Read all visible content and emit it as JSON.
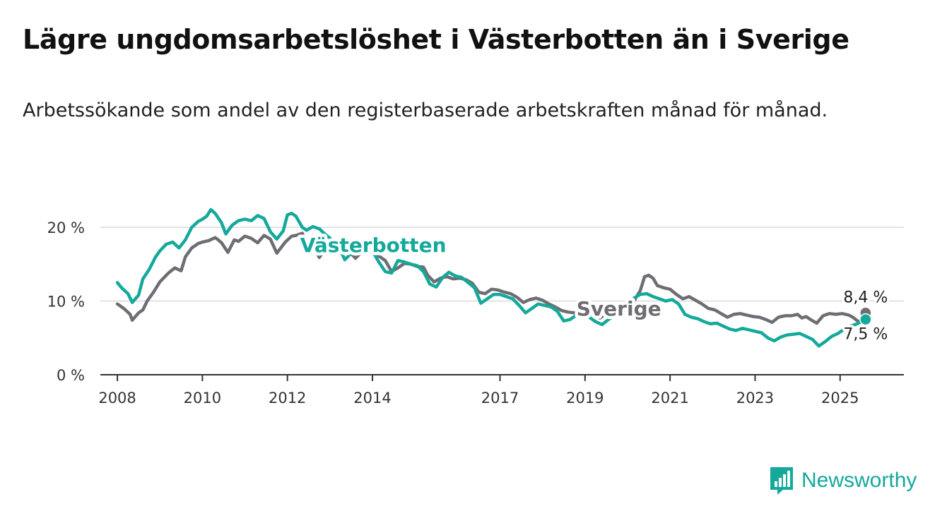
{
  "title": "Lägre ungdomsarbetslöshet i Västerbotten än i Sverige",
  "subtitle": "Arbetssökande som andel av den registerbaserade arbetskraften månad för månad.",
  "brand": {
    "name": "Newsworthy",
    "icon": "bar-chart-logo-icon"
  },
  "colors": {
    "vasterbotten": "#14a99b",
    "sverige": "#6e6d73",
    "grid": "#d9d9d9",
    "axis": "#333333"
  },
  "chart_data": {
    "type": "line",
    "x_unit": "year",
    "xlim": [
      2007.6,
      2026.5
    ],
    "ylim": [
      0,
      22.5
    ],
    "y_ticks": [
      {
        "value": 0,
        "label": "0 %"
      },
      {
        "value": 10,
        "label": "10 %"
      },
      {
        "value": 20,
        "label": "20 %"
      }
    ],
    "x_ticks": [
      {
        "value": 2008,
        "label": "2008"
      },
      {
        "value": 2010,
        "label": "2010"
      },
      {
        "value": 2012,
        "label": "2012"
      },
      {
        "value": 2014,
        "label": "2014"
      },
      {
        "value": 2017,
        "label": "2017"
      },
      {
        "value": 2019,
        "label": "2019"
      },
      {
        "value": 2021,
        "label": "2021"
      },
      {
        "value": 2023,
        "label": "2023"
      },
      {
        "value": 2025,
        "label": "2025"
      }
    ],
    "series": [
      {
        "name": "Sverige",
        "color": "#6e6d73",
        "end_label": "8,4 %",
        "x": [
          2008.0,
          2008.15,
          2008.3,
          2008.35,
          2008.5,
          2008.6,
          2008.7,
          2008.85,
          2009.0,
          2009.2,
          2009.35,
          2009.5,
          2009.6,
          2009.75,
          2009.9,
          2010.0,
          2010.15,
          2010.3,
          2010.35,
          2010.45,
          2010.6,
          2010.75,
          2010.85,
          2011.0,
          2011.15,
          2011.3,
          2011.45,
          2011.6,
          2011.75,
          2011.95,
          2012.1,
          2012.2,
          2012.35,
          2012.45,
          2012.6,
          2012.75,
          2012.9,
          2013.1,
          2013.3,
          2013.45,
          2013.6,
          2013.75,
          2013.9,
          2014.0,
          2014.15,
          2014.3,
          2014.45,
          2014.6,
          2014.75,
          2014.9,
          2015.05,
          2015.2,
          2015.3,
          2015.45,
          2015.6,
          2015.75,
          2015.9,
          2016.05,
          2016.2,
          2016.35,
          2016.5,
          2016.65,
          2016.8,
          2016.95,
          2017.1,
          2017.25,
          2017.4,
          2017.55,
          2017.7,
          2017.85,
          2018.0,
          2018.15,
          2018.3,
          2018.45,
          2018.6,
          2018.75,
          2018.9,
          2019.05,
          2019.2,
          2019.35,
          2019.5,
          2019.65,
          2019.8,
          2019.95,
          2020.1,
          2020.2,
          2020.3,
          2020.4,
          2020.5,
          2020.6,
          2020.7,
          2020.85,
          2021.0,
          2021.15,
          2021.3,
          2021.45,
          2021.6,
          2021.75,
          2021.9,
          2022.05,
          2022.2,
          2022.35,
          2022.5,
          2022.65,
          2022.8,
          2022.95,
          2023.1,
          2023.25,
          2023.4,
          2023.55,
          2023.7,
          2023.85,
          2024.0,
          2024.1,
          2024.2,
          2024.3,
          2024.45,
          2024.6,
          2024.75,
          2024.9,
          2025.05,
          2025.2,
          2025.3,
          2025.45,
          2025.6
        ],
        "values": [
          9.6,
          9.0,
          8.2,
          7.4,
          8.4,
          8.8,
          10.0,
          11.2,
          12.6,
          13.8,
          14.5,
          14.1,
          16.0,
          17.2,
          17.8,
          18.0,
          18.2,
          18.6,
          18.4,
          17.9,
          16.6,
          18.3,
          18.1,
          18.8,
          18.5,
          17.9,
          18.9,
          18.4,
          16.5,
          18.0,
          18.8,
          18.9,
          19.2,
          17.9,
          17.6,
          15.9,
          17.2,
          17.0,
          16.9,
          16.8,
          15.8,
          16.7,
          16.5,
          16.9,
          16.1,
          15.5,
          14.0,
          14.5,
          15.1,
          15.0,
          14.7,
          14.6,
          13.5,
          12.6,
          13.1,
          13.3,
          13.0,
          13.1,
          12.9,
          12.4,
          11.2,
          11.0,
          11.6,
          11.5,
          11.2,
          11.0,
          10.5,
          9.8,
          10.2,
          10.4,
          10.1,
          9.6,
          9.2,
          8.7,
          8.5,
          8.4,
          8.7,
          8.6,
          8.1,
          7.7,
          8.3,
          8.5,
          8.4,
          8.8,
          9.4,
          10.5,
          11.4,
          13.3,
          13.5,
          13.1,
          12.1,
          11.8,
          11.6,
          10.9,
          10.3,
          10.6,
          10.1,
          9.6,
          9.0,
          8.8,
          8.3,
          7.8,
          8.2,
          8.3,
          8.1,
          7.9,
          7.8,
          7.5,
          7.1,
          7.8,
          8.0,
          8.0,
          8.2,
          7.7,
          7.9,
          7.5,
          7.0,
          8.0,
          8.3,
          8.2,
          8.3,
          8.1,
          7.8,
          7.1,
          8.4
        ]
      },
      {
        "name": "Västerbotten",
        "color": "#14a99b",
        "end_label": "7,5 %",
        "x": [
          2008.0,
          2008.1,
          2008.25,
          2008.35,
          2008.5,
          2008.6,
          2008.75,
          2008.9,
          2009.0,
          2009.15,
          2009.3,
          2009.45,
          2009.6,
          2009.75,
          2009.9,
          2010.0,
          2010.1,
          2010.2,
          2010.3,
          2010.45,
          2010.55,
          2010.7,
          2010.85,
          2011.0,
          2011.15,
          2011.3,
          2011.45,
          2011.6,
          2011.75,
          2011.9,
          2012.0,
          2012.1,
          2012.2,
          2012.35,
          2012.45,
          2012.6,
          2012.75,
          2012.9,
          2013.05,
          2013.2,
          2013.35,
          2013.5,
          2013.65,
          2013.8,
          2013.9,
          2014.05,
          2014.15,
          2014.3,
          2014.45,
          2014.6,
          2014.75,
          2014.9,
          2015.05,
          2015.2,
          2015.35,
          2015.5,
          2015.65,
          2015.8,
          2015.95,
          2016.1,
          2016.25,
          2016.4,
          2016.55,
          2016.7,
          2016.85,
          2017.0,
          2017.15,
          2017.3,
          2017.45,
          2017.6,
          2017.75,
          2017.9,
          2018.05,
          2018.2,
          2018.35,
          2018.5,
          2018.65,
          2018.8,
          2018.95,
          2019.1,
          2019.25,
          2019.4,
          2019.55,
          2019.7,
          2019.85,
          2020.0,
          2020.15,
          2020.3,
          2020.45,
          2020.6,
          2020.75,
          2020.9,
          2021.05,
          2021.2,
          2021.35,
          2021.5,
          2021.65,
          2021.8,
          2021.95,
          2022.1,
          2022.25,
          2022.4,
          2022.55,
          2022.7,
          2022.85,
          2023.0,
          2023.15,
          2023.3,
          2023.45,
          2023.6,
          2023.75,
          2023.9,
          2024.05,
          2024.2,
          2024.35,
          2024.5,
          2024.65,
          2024.8,
          2024.95,
          2025.1,
          2025.25,
          2025.4,
          2025.6
        ],
        "values": [
          12.5,
          11.8,
          11.0,
          9.8,
          10.8,
          13.0,
          14.3,
          16.0,
          16.8,
          17.7,
          18.0,
          17.2,
          18.3,
          20.0,
          20.8,
          21.1,
          21.5,
          22.4,
          21.9,
          20.6,
          19.1,
          20.3,
          20.9,
          21.1,
          20.9,
          21.6,
          21.2,
          19.4,
          18.4,
          19.5,
          21.7,
          21.9,
          21.5,
          20.0,
          19.6,
          20.1,
          19.8,
          19.0,
          18.3,
          17.5,
          15.6,
          16.5,
          17.1,
          17.6,
          17.3,
          16.3,
          15.3,
          14.0,
          13.8,
          15.5,
          15.3,
          15.0,
          14.8,
          14.0,
          12.3,
          11.9,
          13.2,
          13.9,
          13.4,
          13.2,
          12.5,
          11.8,
          9.7,
          10.3,
          10.9,
          10.9,
          10.6,
          10.3,
          9.4,
          8.4,
          9.0,
          9.6,
          9.4,
          9.2,
          8.6,
          7.3,
          7.5,
          8.1,
          8.2,
          7.8,
          7.2,
          6.8,
          7.5,
          8.0,
          9.0,
          9.8,
          10.4,
          10.9,
          11.0,
          10.6,
          10.3,
          10.0,
          10.2,
          9.6,
          8.2,
          7.8,
          7.6,
          7.2,
          6.9,
          7.0,
          6.6,
          6.2,
          6.0,
          6.3,
          6.1,
          5.9,
          5.7,
          5.0,
          4.6,
          5.1,
          5.4,
          5.5,
          5.6,
          5.2,
          4.8,
          3.9,
          4.5,
          5.2,
          5.6,
          6.2,
          6.6,
          6.9,
          7.5
        ]
      }
    ],
    "series_labels": [
      {
        "series": "Västerbotten",
        "text": "Västerbotten",
        "x": 2012.3,
        "y": 17.5
      },
      {
        "series": "Sverige",
        "text": "Sverige",
        "x": 2018.8,
        "y": 8.9
      }
    ],
    "grid": "horizontal",
    "legend": "inline labels"
  }
}
